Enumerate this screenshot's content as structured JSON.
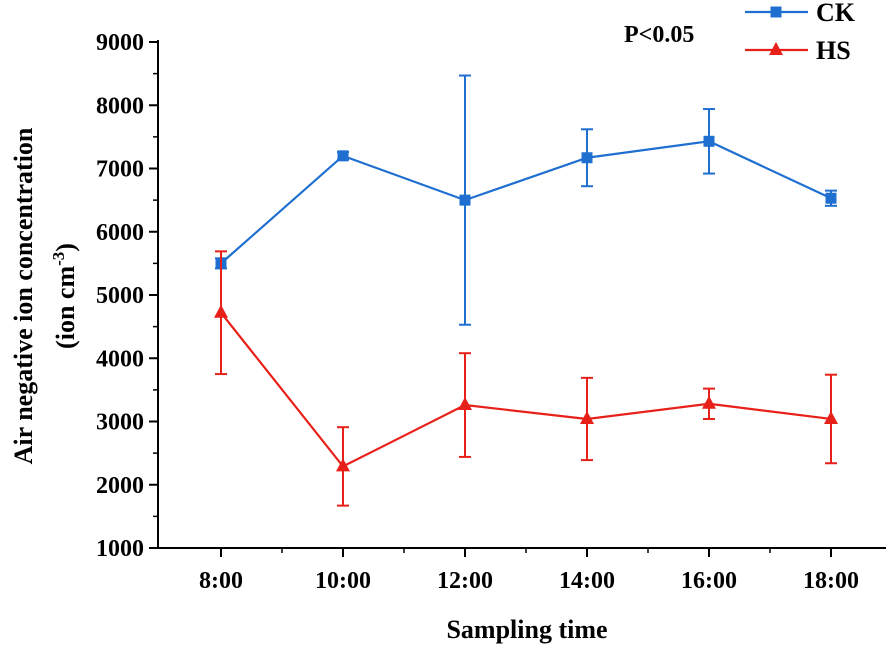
{
  "chart_data": {
    "type": "line",
    "title": "",
    "xlabel": "Sampling time",
    "ylabel_line1": "Air negative ion concentration",
    "ylabel_unit_prefix": "(ion cm",
    "ylabel_unit_exp": "-3",
    "ylabel_unit_suffix": ")",
    "categories": [
      "8:00",
      "10:00",
      "12:00",
      "14:00",
      "16:00",
      "18:00"
    ],
    "ylim": [
      1000,
      9000
    ],
    "yticks": [
      "1000",
      "2000",
      "3000",
      "4000",
      "5000",
      "6000",
      "7000",
      "8000",
      "9000"
    ],
    "annotation": "P<0.05",
    "legend_position": "top-right",
    "series": [
      {
        "name": "CK",
        "color": "#1f6fd1",
        "marker": "square",
        "values": [
          5500,
          7200,
          6500,
          7170,
          7430,
          6530
        ],
        "errors": [
          80,
          60,
          1970,
          450,
          510,
          120
        ]
      },
      {
        "name": "HS",
        "color": "#e8201a",
        "marker": "triangle",
        "values": [
          4720,
          2290,
          3260,
          3040,
          3280,
          3040
        ],
        "errors": [
          970,
          620,
          820,
          650,
          240,
          700
        ]
      }
    ]
  }
}
